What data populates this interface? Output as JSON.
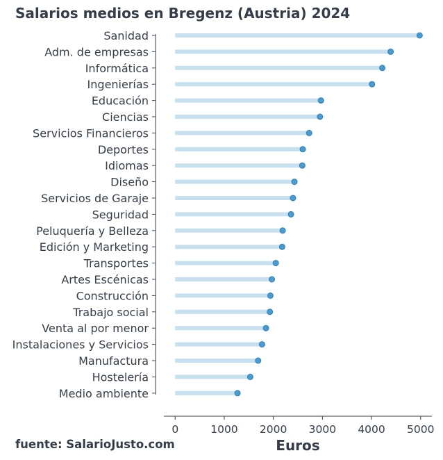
{
  "chart_data": {
    "type": "lollipop",
    "title": "Salarios medios en Bregenz (Austria) 2024",
    "xlabel": "Euros",
    "ylabel": "",
    "source": "fuente: SalarioJusto.com",
    "xlim": [
      -230,
      5230
    ],
    "xticks": [
      0,
      1000,
      2000,
      3000,
      4000,
      5000
    ],
    "colors": {
      "stem": "#c6e0f0",
      "dot": "#4a9bd0",
      "text": "#343d48"
    },
    "categories": [
      "Sanidad",
      "Adm. de empresas",
      "Informática",
      "Ingenierías",
      "Educación",
      "Ciencias",
      "Servicios Financieros",
      "Deportes",
      "Idiomas",
      "Diseño",
      "Servicios de Garaje",
      "Seguridad",
      "Peluquería y Belleza",
      "Edición y Marketing",
      "Transportes",
      "Artes Escénicas",
      "Construcción",
      "Trabajo social",
      "Venta al por menor",
      "Instalaciones y Servicios",
      "Manufactura",
      "Hostelería",
      "Medio ambiente"
    ],
    "values": [
      4980,
      4390,
      4220,
      4010,
      2970,
      2950,
      2730,
      2600,
      2590,
      2430,
      2400,
      2360,
      2190,
      2180,
      2050,
      1970,
      1940,
      1930,
      1850,
      1770,
      1690,
      1530,
      1270
    ]
  }
}
